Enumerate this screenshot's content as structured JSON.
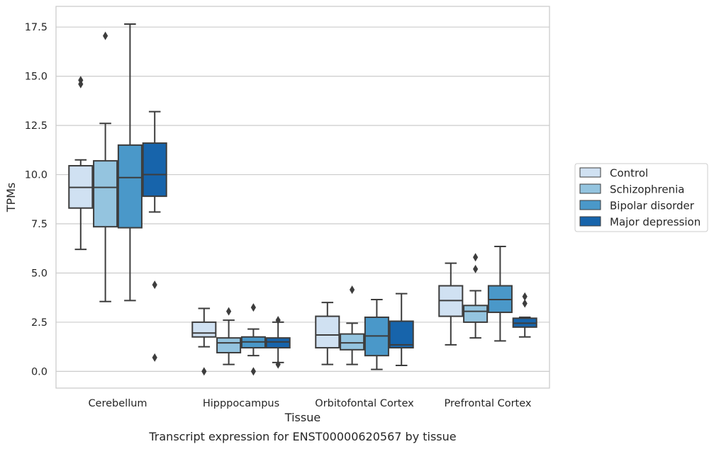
{
  "caption": "Transcript expression for ENST00000620567 by tissue",
  "chart_data": {
    "type": "boxplot",
    "xlabel": "Tissue",
    "ylabel": "TPMs",
    "ylim": [
      -0.85,
      18.55
    ],
    "yticks": [
      0.0,
      2.5,
      5.0,
      7.5,
      10.0,
      12.5,
      15.0,
      17.5
    ],
    "ytick_labels": [
      "0.0",
      "2.5",
      "5.0",
      "7.5",
      "10.0",
      "12.5",
      "15.0",
      "17.5"
    ],
    "grid": "horizontal",
    "legend_position": "right",
    "categories": [
      "Cerebellum",
      "Hipppocampus",
      "Orbitofontal Cortex",
      "Prefrontal Cortex"
    ],
    "series": [
      {
        "name": "Control",
        "color": "#d0e1f2",
        "boxes": [
          {
            "whislo": 6.2,
            "q1": 8.3,
            "med": 9.35,
            "q3": 10.45,
            "whishi": 10.75,
            "fliers": [
              14.6,
              14.8
            ]
          },
          {
            "whislo": 1.25,
            "q1": 1.75,
            "med": 1.95,
            "q3": 2.5,
            "whishi": 3.2,
            "fliers": [
              0.0
            ]
          },
          {
            "whislo": 0.35,
            "q1": 1.2,
            "med": 1.85,
            "q3": 2.8,
            "whishi": 3.5,
            "fliers": []
          },
          {
            "whislo": 1.35,
            "q1": 2.8,
            "med": 3.6,
            "q3": 4.35,
            "whishi": 5.5,
            "fliers": []
          }
        ]
      },
      {
        "name": "Schizophrenia",
        "color": "#94c4df",
        "boxes": [
          {
            "whislo": 3.55,
            "q1": 7.35,
            "med": 9.35,
            "q3": 10.7,
            "whishi": 12.6,
            "fliers": [
              17.05
            ]
          },
          {
            "whislo": 0.35,
            "q1": 0.95,
            "med": 1.45,
            "q3": 1.7,
            "whishi": 2.6,
            "fliers": [
              3.05
            ]
          },
          {
            "whislo": 0.35,
            "q1": 1.1,
            "med": 1.45,
            "q3": 1.9,
            "whishi": 2.45,
            "fliers": [
              4.15
            ]
          },
          {
            "whislo": 1.7,
            "q1": 2.5,
            "med": 3.05,
            "q3": 3.35,
            "whishi": 4.1,
            "fliers": [
              5.2,
              5.8
            ]
          }
        ]
      },
      {
        "name": "Bipolar disorder",
        "color": "#4a98c9",
        "boxes": [
          {
            "whislo": 3.6,
            "q1": 7.3,
            "med": 9.85,
            "q3": 11.5,
            "whishi": 17.65,
            "fliers": []
          },
          {
            "whislo": 0.8,
            "q1": 1.2,
            "med": 1.5,
            "q3": 1.75,
            "whishi": 2.15,
            "fliers": [
              0.0,
              3.25
            ]
          },
          {
            "whislo": 0.1,
            "q1": 0.8,
            "med": 1.8,
            "q3": 2.75,
            "whishi": 3.65,
            "fliers": []
          },
          {
            "whislo": 1.55,
            "q1": 3.0,
            "med": 3.65,
            "q3": 4.35,
            "whishi": 6.35,
            "fliers": []
          }
        ]
      },
      {
        "name": "Major depression",
        "color": "#1764ab",
        "boxes": [
          {
            "whislo": 8.1,
            "q1": 8.9,
            "med": 10.0,
            "q3": 11.6,
            "whishi": 13.2,
            "fliers": [
              4.4,
              0.7
            ]
          },
          {
            "whislo": 0.45,
            "q1": 1.2,
            "med": 1.5,
            "q3": 1.7,
            "whishi": 2.5,
            "fliers": [
              0.35,
              2.6
            ]
          },
          {
            "whislo": 0.3,
            "q1": 1.2,
            "med": 1.35,
            "q3": 2.55,
            "whishi": 3.95,
            "fliers": []
          },
          {
            "whislo": 1.75,
            "q1": 2.25,
            "med": 2.45,
            "q3": 2.7,
            "whishi": 2.75,
            "fliers": [
              3.45,
              3.8
            ]
          }
        ]
      }
    ]
  }
}
